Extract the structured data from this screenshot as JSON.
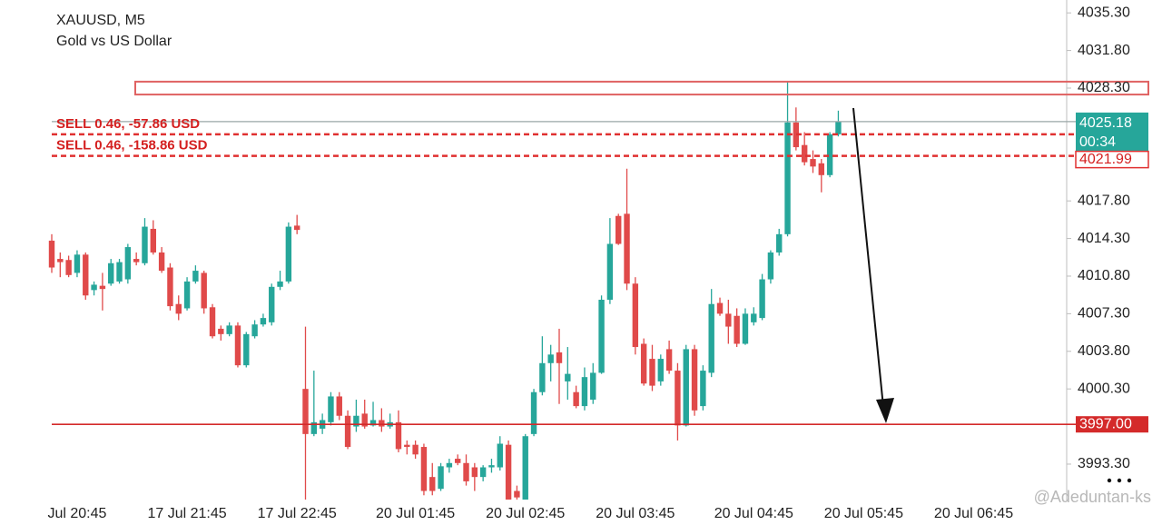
{
  "chart_data": {
    "type": "candlestick",
    "title": "XAUUSD, M5",
    "subtitle": "Gold vs US Dollar",
    "up_color": "#26a69a",
    "down_color": "#e04a4a",
    "categories": [
      null,
      null,
      null,
      "Jul 20:45",
      null,
      null,
      null,
      null,
      null,
      null,
      null,
      null,
      null,
      null,
      null,
      null,
      "17 Jul 21:45",
      null,
      null,
      null,
      null,
      null,
      null,
      null,
      null,
      null,
      null,
      null,
      null,
      "17 Jul 22:45",
      null,
      null,
      null,
      null,
      null,
      null,
      null,
      null,
      null,
      null,
      null,
      null,
      null,
      "20 Jul 01:45",
      null,
      null,
      null,
      null,
      null,
      null,
      null,
      null,
      null,
      null,
      null,
      null,
      "20 Jul 02:45",
      null,
      null,
      null,
      null,
      null,
      null,
      null,
      null,
      null,
      null,
      null,
      null,
      "20 Jul 03:45",
      null,
      null,
      null,
      null,
      null,
      null,
      null,
      null,
      null,
      null,
      null,
      null,
      null,
      "20 Jul 04:45",
      null,
      null,
      null,
      null,
      null,
      null,
      null,
      null,
      null,
      null,
      null,
      null,
      "20 Jul 05:45",
      null,
      null,
      null,
      null,
      null,
      null,
      null,
      null,
      null,
      null,
      null,
      null,
      "20 Jul 06:45",
      null,
      null,
      null,
      null,
      null,
      null,
      null,
      null,
      null,
      null,
      null
    ],
    "open": [
      4014.1,
      4012.4,
      4012.3,
      4011.1,
      4012.8,
      4009.5,
      4009.9,
      4010.1,
      4010.3,
      4010.5,
      4012.4,
      4012.0,
      4015.2,
      4013.0,
      4011.6,
      4008.2,
      4007.8,
      4010.3,
      4011.1,
      4007.9,
      4005.9,
      4005.4,
      4006.2,
      4002.5,
      4005.2,
      4006.3,
      4006.5,
      4009.8,
      4010.3,
      4015.5,
      4000.3,
      3996.1,
      3996.6,
      3997.2,
      3999.6,
      3997.8,
      3996.8,
      3998.0,
      3996.9,
      3997.4,
      3996.8,
      3997.2,
      3995.1,
      3995.1,
      3994.9,
      3992.1,
      3991.0,
      3993.0,
      3993.8,
      3993.4,
      3993.0,
      3992.1,
      3993.0,
      3993.0,
      3995.1,
      3990.8,
      3990.0,
      3996.1,
      4000.0,
      4002.7,
      4003.7,
      4001.0,
      4000.0,
      3998.7,
      3999.3,
      4001.8,
      4008.6,
      4016.4,
      4016.6,
      4010.1,
      4004.5,
      4003.1,
      4001.0,
      4004.0,
      4002.0,
      3996.9,
      4004.0,
      3998.7,
      4001.8,
      4008.3,
      4007.3,
      4007.1,
      4004.5,
      4006.5,
      4006.9,
      4010.5,
      4013.0,
      4014.7,
      4025.1,
      4023.0,
      4021.7,
      4021.3,
      4020.2,
      4024.0,
      null,
      null,
      null,
      null,
      null,
      null,
      null,
      null,
      null,
      null,
      null,
      null,
      null,
      null,
      null,
      null,
      null,
      null,
      null,
      null,
      null,
      null,
      null,
      null,
      null,
      null,
      null
    ],
    "high": [
      4014.7,
      4013.0,
      4012.7,
      4013.2,
      4013.0,
      4010.3,
      4011.1,
      4012.4,
      4012.4,
      4013.8,
      4013.0,
      4016.2,
      4016.0,
      4013.5,
      4012.0,
      4009.0,
      4010.7,
      4011.8,
      4011.3,
      4008.2,
      4006.2,
      4006.5,
      4006.5,
      4005.6,
      4006.7,
      4007.3,
      4010.1,
      4011.3,
      4015.8,
      4016.5,
      4006.1,
      4002.0,
      3998.0,
      4000.0,
      4000.0,
      3998.3,
      3999.3,
      3999.3,
      3999.1,
      3998.5,
      3998.0,
      3998.3,
      3995.5,
      3995.5,
      3995.2,
      3993.4,
      3993.4,
      3993.8,
      3994.2,
      3994.2,
      3993.4,
      3993.2,
      3993.8,
      3995.9,
      3995.5,
      3991.3,
      3996.1,
      4000.3,
      4005.2,
      4004.4,
      4005.9,
      4004.2,
      4000.6,
      4002.3,
      4002.7,
      4009.0,
      4016.2,
      4016.6,
      4020.8,
      4010.7,
      4005.0,
      4004.4,
      4003.5,
      4004.8,
      4002.7,
      4004.4,
      4004.4,
      4002.5,
      4009.6,
      4008.8,
      4008.6,
      4007.8,
      4007.8,
      4007.9,
      4011.0,
      4013.2,
      4015.2,
      4028.9,
      4026.5,
      4024.2,
      4022.5,
      4021.7,
      4024.2,
      4026.2,
      null,
      null,
      null,
      null,
      null,
      null,
      null,
      null,
      null,
      null,
      null,
      null,
      null,
      null,
      null,
      null,
      null,
      null,
      null,
      null,
      null,
      null,
      null,
      null,
      null,
      null,
      null
    ],
    "low": [
      4011.1,
      4010.7,
      4010.7,
      4010.7,
      4008.6,
      4009.0,
      4007.6,
      4009.9,
      4010.1,
      4010.1,
      4011.8,
      4011.8,
      4012.8,
      4011.1,
      4007.6,
      4006.7,
      4007.6,
      4010.1,
      4007.3,
      4005.0,
      4004.8,
      4005.2,
      4002.3,
      4002.3,
      4005.0,
      4006.1,
      4006.2,
      4009.5,
      4010.1,
      4014.7,
      3990.0,
      3995.9,
      3996.1,
      3996.9,
      3997.4,
      3994.7,
      3996.3,
      3996.6,
      3996.8,
      3996.3,
      3996.6,
      3994.4,
      3994.2,
      3993.8,
      3990.4,
      3990.4,
      3990.8,
      3992.5,
      3993.2,
      3991.3,
      3990.8,
      3991.7,
      3992.5,
      3992.7,
      3989.6,
      3989.8,
      3989.6,
      3995.9,
      3999.7,
      4001.0,
      3998.9,
      3999.3,
      3998.5,
      3998.3,
      3998.9,
      4001.7,
      4008.2,
      4013.7,
      4009.5,
      4003.5,
      4000.6,
      4000.1,
      4000.6,
      4001.7,
      3995.5,
      3996.8,
      3997.8,
      3998.3,
      4001.4,
      4007.1,
      4004.5,
      4004.2,
      4004.4,
      4006.2,
      4006.7,
      4010.1,
      4012.7,
      4014.5,
      4022.5,
      4021.1,
      4020.4,
      4018.6,
      4020.0,
      4023.8,
      null,
      null,
      null,
      null,
      null,
      null,
      null,
      null,
      null,
      null,
      null,
      null,
      null,
      null,
      null,
      null,
      null,
      null,
      null,
      null,
      null,
      null,
      null,
      null,
      null,
      null,
      null
    ],
    "close": [
      4011.6,
      4012.1,
      4010.9,
      4012.8,
      4009.0,
      4010.0,
      4009.6,
      4012.0,
      4012.1,
      4013.5,
      4012.1,
      4015.4,
      4013.0,
      4011.3,
      4008.0,
      4007.3,
      4010.3,
      4011.3,
      4007.8,
      4005.2,
      4005.4,
      4006.2,
      4002.5,
      4005.4,
      4006.3,
      4006.9,
      4009.8,
      4010.3,
      4015.4,
      4015.1,
      3996.1,
      3997.2,
      3997.4,
      3999.6,
      3997.8,
      3994.9,
      3997.8,
      3996.8,
      3997.4,
      3996.8,
      3997.2,
      3994.7,
      3994.9,
      3994.2,
      3990.8,
      3990.8,
      3993.1,
      3993.4,
      3993.4,
      3991.7,
      3992.1,
      3993.0,
      3993.2,
      3995.2,
      3990.0,
      3990.2,
      3995.9,
      4000.0,
      4002.7,
      4003.5,
      4002.7,
      4001.7,
      3998.7,
      4001.4,
      4001.8,
      4008.6,
      4013.8,
      4013.8,
      4010.1,
      4004.2,
      4000.8,
      4000.6,
      4003.1,
      4002.0,
      3996.9,
      4004.0,
      3998.3,
      4002.0,
      4008.2,
      4007.3,
      4006.1,
      4004.5,
      4007.3,
      4007.3,
      4010.5,
      4013.0,
      4014.7,
      4025.1,
      4022.8,
      4021.4,
      4021.0,
      4020.2,
      4024.0,
      4025.2,
      null,
      null,
      null,
      null,
      null,
      null,
      null,
      null,
      null,
      null,
      null,
      null,
      null,
      null,
      null,
      null,
      null,
      null,
      null,
      null,
      null,
      null,
      null,
      null,
      null,
      null,
      null
    ],
    "ylim": [
      3990.0,
      4036.5
    ],
    "yticks": [
      {
        "value": 4035.3,
        "label": "4035.30"
      },
      {
        "value": 4031.8,
        "label": "4031.80"
      },
      {
        "value": 4028.3,
        "label": "4028.30"
      },
      {
        "value": 4017.8,
        "label": "4017.80"
      },
      {
        "value": 4014.3,
        "label": "4014.30"
      },
      {
        "value": 4010.8,
        "label": "4010.80"
      },
      {
        "value": 4007.3,
        "label": "4007.30"
      },
      {
        "value": 4003.8,
        "label": "4003.80"
      },
      {
        "value": 4000.3,
        "label": "4000.30"
      },
      {
        "value": 3993.3,
        "label": "3993.30"
      }
    ],
    "grid": false,
    "current_price": 4025.18,
    "countdown": "00:34",
    "orders": [
      {
        "text": "SELL 0.46, -57.86 USD",
        "price": 4024.0
      },
      {
        "text": "SELL 0.46, -158.86 USD",
        "price": 4021.99
      }
    ],
    "target": {
      "value": 3997,
      "label": "3997.00"
    },
    "zone": {
      "low": 4027.7,
      "high": 4028.9
    },
    "watermark": "@Adeduntan-ks"
  }
}
